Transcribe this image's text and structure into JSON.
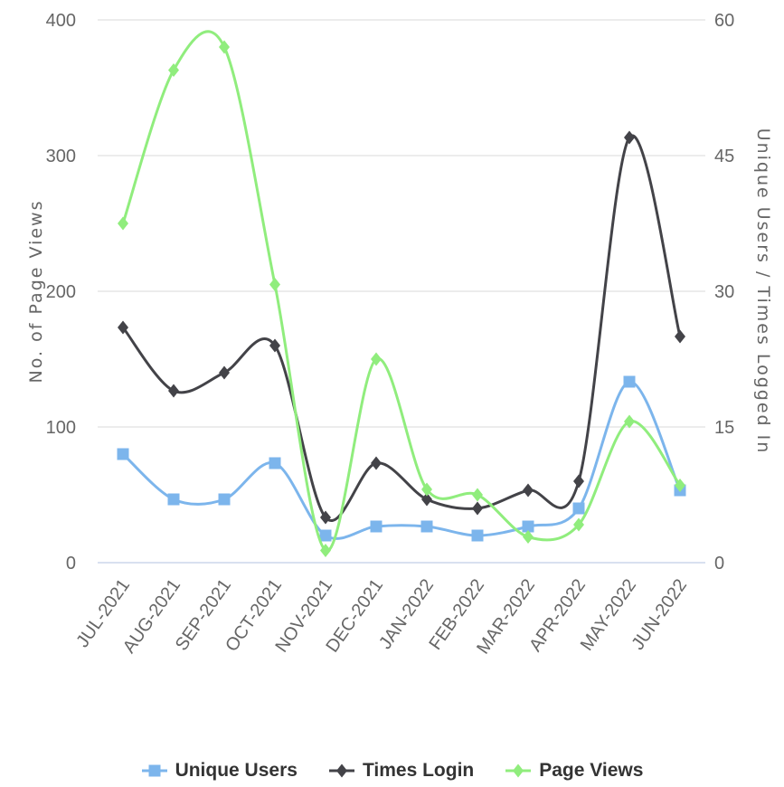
{
  "chart_data": {
    "type": "line",
    "categories": [
      "JUL-2021",
      "AUG-2021",
      "SEP-2021",
      "OCT-2021",
      "NOV-2021",
      "DEC-2021",
      "JAN-2022",
      "FEB-2022",
      "MAR-2022",
      "APR-2022",
      "MAY-2022",
      "JUN-2022"
    ],
    "left_axis": {
      "label": "No. of Page Views",
      "ylim": [
        0,
        400
      ],
      "ticks": [
        "0",
        "100",
        "200",
        "300",
        "400"
      ],
      "tick_values": [
        0,
        100,
        200,
        300,
        400
      ]
    },
    "right_axis": {
      "label": "Unique Users / Times Logged In",
      "ylim": [
        0,
        60
      ],
      "ticks": [
        "0",
        "15",
        "30",
        "45",
        "60"
      ],
      "tick_values": [
        0,
        15,
        30,
        45,
        60
      ]
    },
    "grid": true,
    "legend_position": "bottom",
    "series": [
      {
        "name": "Unique Users",
        "axis": "right",
        "color": "#7cb5ec",
        "marker": "square",
        "values": [
          12,
          7,
          7,
          11,
          3,
          4,
          4,
          3,
          4,
          6,
          20,
          8
        ]
      },
      {
        "name": "Times Login",
        "axis": "right",
        "color": "#434348",
        "marker": "diamond",
        "values": [
          26,
          19,
          21,
          24,
          5,
          11,
          7,
          6,
          8,
          9,
          47,
          25
        ]
      },
      {
        "name": "Page Views",
        "axis": "left",
        "color": "#90ed7d",
        "marker": "diamond",
        "values": [
          250,
          363,
          380,
          205,
          9,
          150,
          54,
          50,
          19,
          28,
          104,
          57
        ]
      }
    ]
  }
}
